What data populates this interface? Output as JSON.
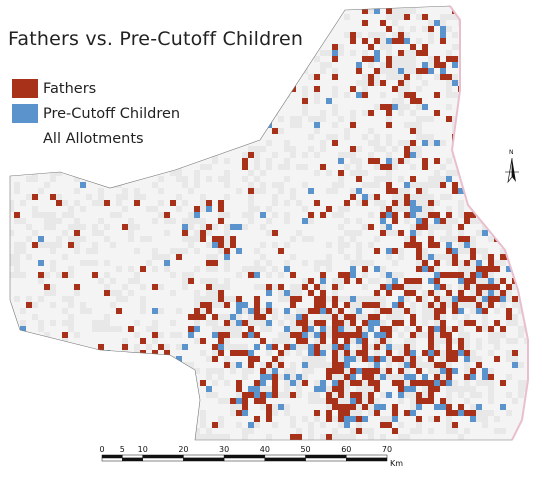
{
  "title": "Fathers vs. Pre-Cutoff Children",
  "legend": {
    "items": [
      {
        "label": "Fathers",
        "color": "#a83219"
      },
      {
        "label": "Pre-Cutoff Children",
        "color": "#5b93cc"
      },
      {
        "label": "All Allotments",
        "color": "#e8e8e8"
      }
    ]
  },
  "north_arrow": {
    "label": "N",
    "icon": "north-arrow-icon"
  },
  "scale_bar": {
    "ticks": [
      "0",
      "5",
      "10",
      "20",
      "30",
      "40",
      "50",
      "60",
      "70"
    ],
    "unit": "Km"
  },
  "colors": {
    "boundary": "#555555",
    "pink_edge": "#e9bfd0"
  }
}
